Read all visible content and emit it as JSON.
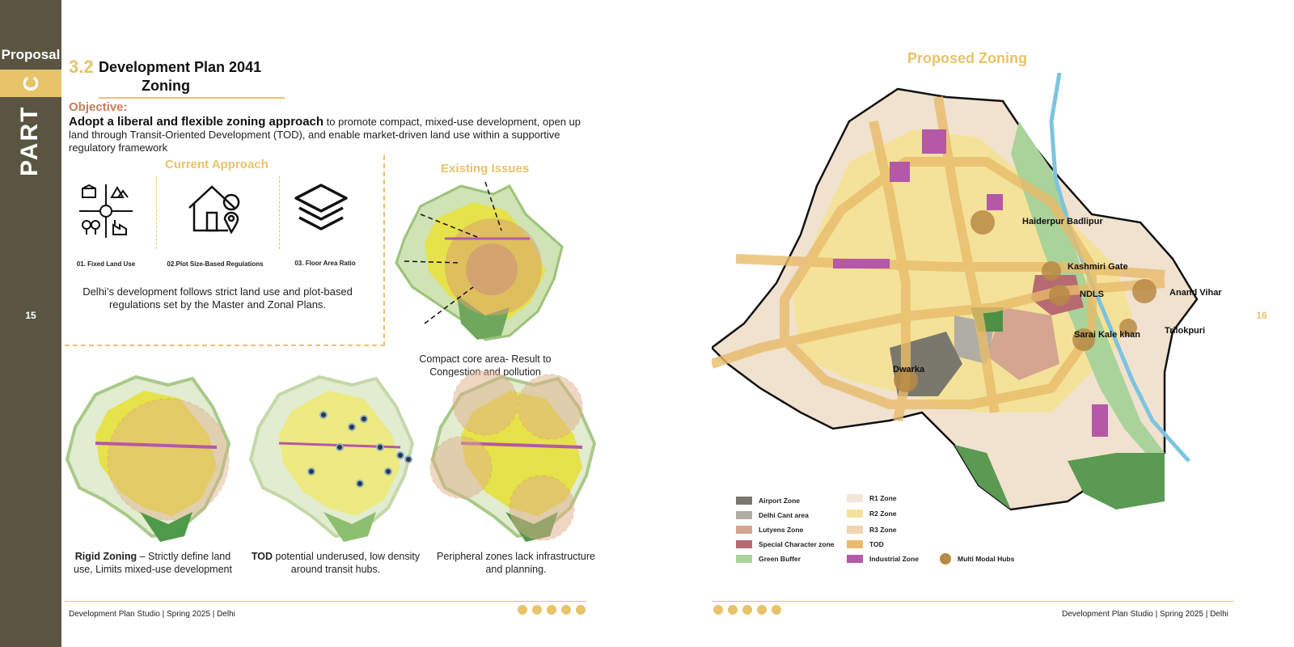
{
  "sidebar": {
    "proposal": "Proposal",
    "letter": "C",
    "part": "PART",
    "page_left": "15",
    "page_right": "16"
  },
  "section": {
    "number": "3.2",
    "title_line1": "Development Plan 2041",
    "title_line2": "Zoning"
  },
  "objective": {
    "label": "Objective:",
    "bold": "Adopt a liberal and flexible zoning approach",
    "text": " to promote compact, mixed-use development, open up land through Transit-Oriented Development (TOD), and enable market-driven land use within a supportive regulatory framework"
  },
  "current_approach": {
    "title": "Current Approach",
    "items": [
      {
        "caption": "01. Fixed Land Use",
        "icon": "land-use-icon"
      },
      {
        "caption": "02.Plot Size-Based Regulations",
        "icon": "house-location-icon"
      },
      {
        "caption": "03. Floor Area Ratio",
        "icon": "layers-icon"
      }
    ],
    "description": "Delhi’s development follows strict land use and plot-based regulations set by the Master and Zonal Plans."
  },
  "existing_issues": {
    "title": "Existing Issues",
    "caption": "Compact core area- Result to Congestion and pollution"
  },
  "issue_maps": [
    {
      "bold": "Rigid Zoning",
      "text": " – Strictly define land use, Limits mixed-use development"
    },
    {
      "bold": "TOD",
      "text": " potential underused, low density around transit hubs."
    },
    {
      "bold": "",
      "text": "Peripheral zones lack infrastructure and planning."
    }
  ],
  "proposed_zoning": {
    "title": "Proposed Zoning",
    "labels": [
      "Haiderpur Badlipur",
      "Kashmiri Gate",
      "NDLS",
      "Anand Vihar",
      "Sarai Kale khan",
      "Trilokpuri",
      "Dwarka"
    ]
  },
  "legend": [
    {
      "label": "Airport Zone",
      "color": "#7a786c"
    },
    {
      "label": "Delhi Cant area",
      "color": "#b0ada5"
    },
    {
      "label": "Lutyens Zone",
      "color": "#d4a590"
    },
    {
      "label": "Special Character zone",
      "color": "#b86a72"
    },
    {
      "label": "Green Buffer",
      "color": "#a9d39a"
    },
    {
      "label": "R1 Zone",
      "color": "#f3e6d6"
    },
    {
      "label": "R2 Zone",
      "color": "#f5e29a"
    },
    {
      "label": "R3 Zone",
      "color": "#efd5b4"
    },
    {
      "label": "TOD",
      "color": "#e8bc6a"
    },
    {
      "label": "Industrial Zone",
      "color": "#b558a8"
    },
    {
      "label": "Multi Modal Hubs",
      "color": "#b88a45"
    }
  ],
  "footer": {
    "left": "Development Plan Studio | Spring 2025 | Delhi",
    "right": "Development Plan Studio | Spring 2025 | Delhi"
  },
  "colors": {
    "accent": "#e8c36a",
    "sidebar": "#5a5540",
    "objective": "#c97a55"
  }
}
